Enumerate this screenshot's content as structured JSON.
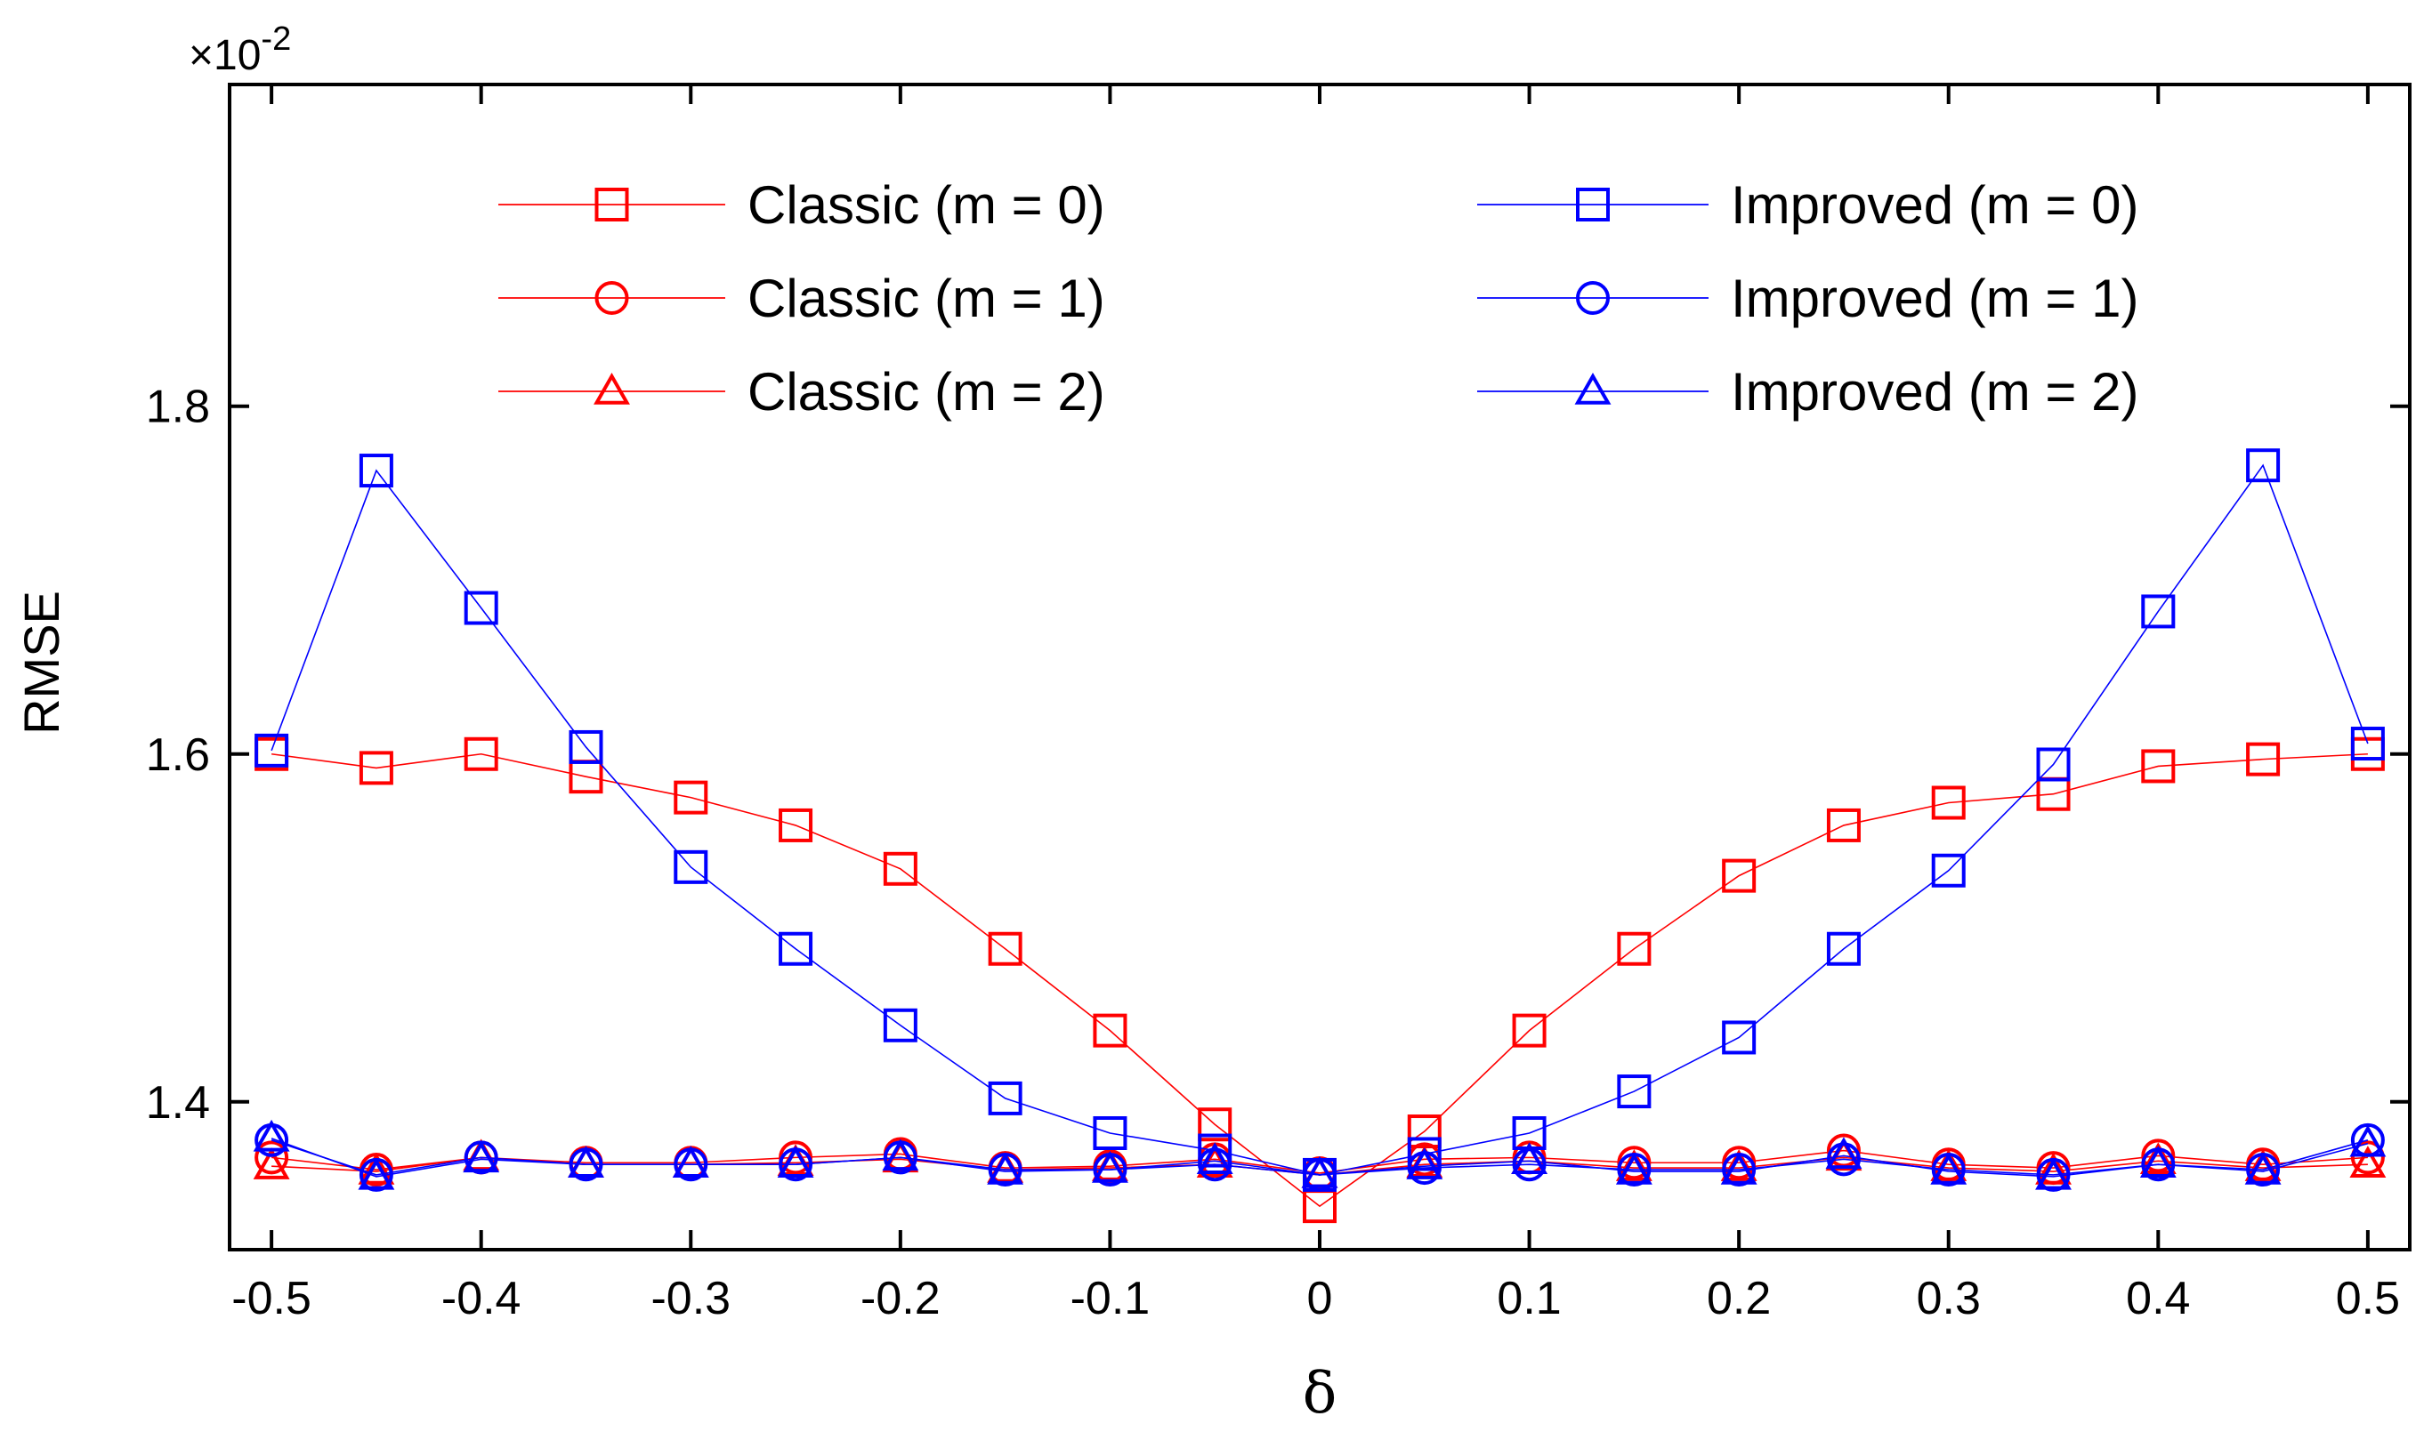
{
  "chart_data": {
    "type": "line",
    "title": "",
    "xlabel": "δ",
    "ylabel": "RMSE",
    "scale_multiplier": "×10",
    "scale_exponent": "-2",
    "xlim": [
      -0.52,
      0.52
    ],
    "ylim": [
      1.315,
      1.985
    ],
    "x": [
      -0.5,
      -0.45,
      -0.4,
      -0.35,
      -0.3,
      -0.25,
      -0.2,
      -0.15,
      -0.1,
      -0.05,
      0,
      0.05,
      0.1,
      0.15,
      0.2,
      0.25,
      0.3,
      0.35,
      0.4,
      0.45,
      0.5
    ],
    "x_tick_labels": [
      "-0.5",
      "-0.4",
      "-0.3",
      "-0.2",
      "-0.1",
      "0",
      "0.1",
      "0.2",
      "0.3",
      "0.4",
      "0.5"
    ],
    "x_tick_values": [
      -0.5,
      -0.4,
      -0.3,
      -0.2,
      -0.1,
      0,
      0.1,
      0.2,
      0.3,
      0.4,
      0.5
    ],
    "y_tick_labels": [
      "1.4",
      "1.6",
      "1.8"
    ],
    "y_tick_values": [
      1.4,
      1.6,
      1.8
    ],
    "grid": false,
    "legend_position": "top",
    "series": [
      {
        "name": "Classic (m = 0)",
        "color": "#ff0000",
        "marker": "square",
        "values": [
          1.6,
          1.592,
          1.6,
          1.587,
          1.575,
          1.559,
          1.534,
          1.488,
          1.441,
          1.387,
          1.34,
          1.383,
          1.441,
          1.488,
          1.53,
          1.559,
          1.572,
          1.577,
          1.593,
          1.597,
          1.6
        ]
      },
      {
        "name": "Classic (m = 1)",
        "color": "#ff0000",
        "marker": "circle",
        "values": [
          1.368,
          1.361,
          1.368,
          1.365,
          1.365,
          1.368,
          1.37,
          1.362,
          1.363,
          1.367,
          1.359,
          1.367,
          1.368,
          1.365,
          1.365,
          1.372,
          1.364,
          1.362,
          1.369,
          1.364,
          1.368
        ]
      },
      {
        "name": "Classic (m = 2)",
        "color": "#ff0000",
        "marker": "triangle",
        "values": [
          1.363,
          1.36,
          1.368,
          1.364,
          1.364,
          1.365,
          1.367,
          1.361,
          1.362,
          1.364,
          1.358,
          1.364,
          1.366,
          1.362,
          1.362,
          1.368,
          1.362,
          1.36,
          1.366,
          1.362,
          1.364
        ]
      },
      {
        "name": "Improved (m = 0)",
        "color": "#0000ff",
        "marker": "square",
        "values": [
          1.602,
          1.763,
          1.684,
          1.604,
          1.535,
          1.488,
          1.444,
          1.402,
          1.382,
          1.372,
          1.358,
          1.37,
          1.382,
          1.406,
          1.437,
          1.488,
          1.533,
          1.594,
          1.682,
          1.766,
          1.606
        ]
      },
      {
        "name": "Improved (m = 1)",
        "color": "#0000ff",
        "marker": "circle",
        "values": [
          1.378,
          1.358,
          1.368,
          1.364,
          1.364,
          1.364,
          1.368,
          1.361,
          1.361,
          1.364,
          1.358,
          1.362,
          1.364,
          1.361,
          1.361,
          1.367,
          1.361,
          1.358,
          1.364,
          1.361,
          1.378
        ]
      },
      {
        "name": "Improved (m = 2)",
        "color": "#0000ff",
        "marker": "triangle",
        "values": [
          1.379,
          1.357,
          1.367,
          1.364,
          1.364,
          1.364,
          1.368,
          1.36,
          1.361,
          1.366,
          1.358,
          1.363,
          1.366,
          1.36,
          1.36,
          1.369,
          1.36,
          1.357,
          1.364,
          1.36,
          1.376
        ]
      }
    ]
  }
}
